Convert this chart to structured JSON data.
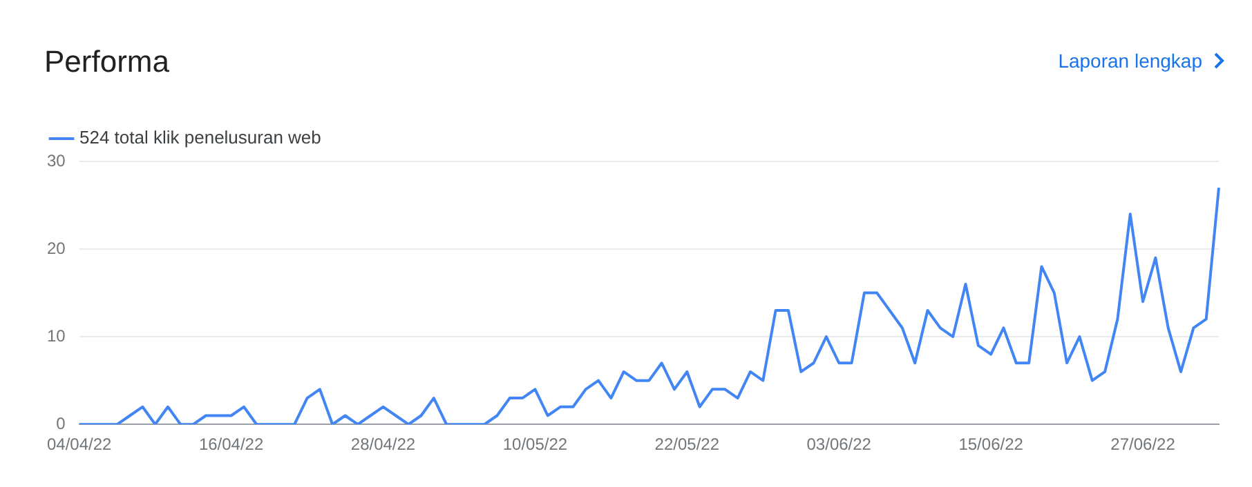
{
  "chart_data": {
    "type": "line",
    "title": "Performa",
    "annotations": [
      "Laporan lengkap"
    ],
    "categories": [
      "04/04/22",
      null,
      null,
      null,
      null,
      null,
      null,
      null,
      null,
      null,
      null,
      null,
      "16/04/22",
      null,
      null,
      null,
      null,
      null,
      null,
      null,
      null,
      null,
      null,
      null,
      "28/04/22",
      null,
      null,
      null,
      null,
      null,
      null,
      null,
      null,
      null,
      null,
      null,
      "10/05/22",
      null,
      null,
      null,
      null,
      null,
      null,
      null,
      null,
      null,
      null,
      null,
      "22/05/22",
      null,
      null,
      null,
      null,
      null,
      null,
      null,
      null,
      null,
      null,
      null,
      "03/06/22",
      null,
      null,
      null,
      null,
      null,
      null,
      null,
      null,
      null,
      null,
      null,
      "15/06/22",
      null,
      null,
      null,
      null,
      null,
      null,
      null,
      null,
      null,
      null,
      null,
      "27/06/22",
      null,
      null,
      null,
      null,
      null,
      null
    ],
    "series": [
      {
        "name": "524 total klik penelusuran web",
        "color": "#4285f4",
        "values": [
          0,
          0,
          0,
          0,
          1,
          2,
          0,
          2,
          0,
          0,
          1,
          1,
          1,
          2,
          0,
          0,
          0,
          0,
          3,
          4,
          0,
          1,
          0,
          1,
          2,
          1,
          0,
          1,
          3,
          0,
          0,
          0,
          0,
          1,
          3,
          3,
          4,
          1,
          2,
          2,
          4,
          5,
          3,
          6,
          5,
          5,
          7,
          4,
          6,
          2,
          4,
          4,
          3,
          6,
          5,
          13,
          13,
          6,
          7,
          10,
          7,
          7,
          15,
          15,
          13,
          11,
          7,
          13,
          11,
          10,
          16,
          9,
          8,
          11,
          7,
          7,
          18,
          15,
          7,
          10,
          5,
          6,
          12,
          24,
          14,
          19,
          11,
          6,
          11,
          12,
          27
        ]
      }
    ],
    "ylim": [
      0,
      30
    ],
    "yticks": [
      0,
      10,
      20,
      30
    ],
    "grid": "y",
    "legend": "top left"
  }
}
